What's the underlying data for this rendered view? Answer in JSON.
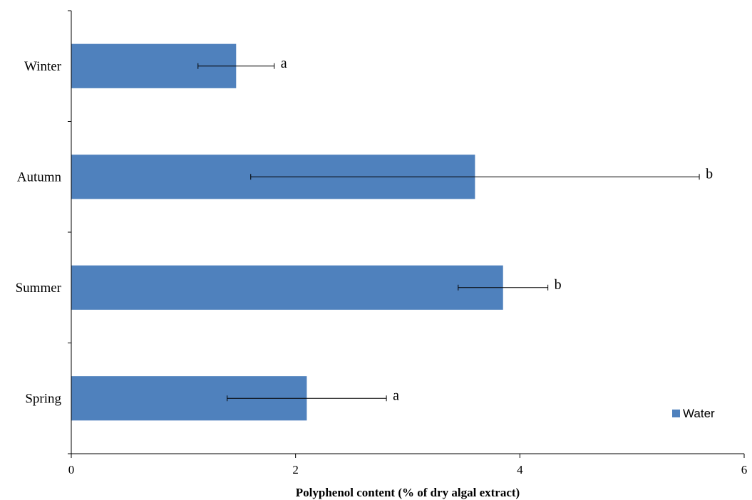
{
  "chart_data": {
    "type": "bar",
    "orientation": "horizontal",
    "categories": [
      "Winter",
      "Autumn",
      "Summer",
      "Spring"
    ],
    "series": [
      {
        "name": "Water",
        "values": [
          1.47,
          3.6,
          3.85,
          2.1
        ],
        "error": [
          0.34,
          2.0,
          0.4,
          0.71
        ],
        "significance": [
          "a",
          "b",
          "b",
          "a"
        ],
        "color": "#4F81BD"
      }
    ],
    "xlabel": "Polyphenol content (% of dry algal extract)",
    "ylabel": "",
    "xlim": [
      0,
      6
    ],
    "xticks": [
      "0",
      "2",
      "4",
      "6"
    ],
    "grid": false,
    "legend": "bottom-right"
  }
}
